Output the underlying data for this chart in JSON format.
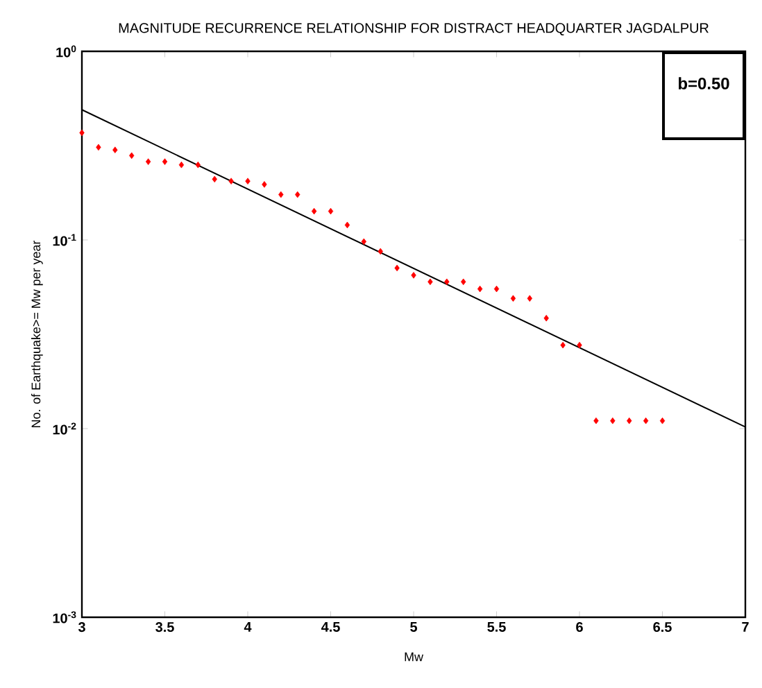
{
  "chart_data": {
    "type": "scatter",
    "title": "MAGNITUDE RECURRENCE RELATIONSHIP FOR DISTRACT HEADQUARTER JAGDALPUR",
    "xlabel": "Mw",
    "ylabel": "No. of Earthquake>= Mw per year",
    "annotations": [
      "b=0.50"
    ],
    "x": [
      3.0,
      3.1,
      3.2,
      3.3,
      3.4,
      3.5,
      3.6,
      3.7,
      3.8,
      3.9,
      4.0,
      4.1,
      4.2,
      4.3,
      4.4,
      4.5,
      4.6,
      4.7,
      4.8,
      4.9,
      5.0,
      5.1,
      5.2,
      5.3,
      5.4,
      5.5,
      5.6,
      5.7,
      5.8,
      5.9,
      6.0,
      6.1,
      6.2,
      6.3,
      6.4,
      6.5
    ],
    "series": [
      {
        "color": "#ff0000",
        "marker": "diamond",
        "values": [
          0.37,
          0.31,
          0.3,
          0.28,
          0.26,
          0.26,
          0.25,
          0.25,
          0.21,
          0.205,
          0.205,
          0.197,
          0.174,
          0.174,
          0.142,
          0.142,
          0.12,
          0.098,
          0.087,
          0.071,
          0.065,
          0.06,
          0.06,
          0.06,
          0.055,
          0.055,
          0.049,
          0.049,
          0.0385,
          0.0277,
          0.0277,
          0.011,
          0.011,
          0.011,
          0.011,
          0.011
        ]
      },
      {
        "type": "line",
        "color": "#000000",
        "marker": "none",
        "line_style": "solid",
        "x": [
          3,
          7
        ],
        "values": [
          0.49,
          0.0102
        ]
      }
    ],
    "log": "y",
    "grid": false,
    "xlim": [
      3,
      7
    ],
    "xticks": [
      3,
      3.5,
      4,
      4.5,
      5,
      5.5,
      6,
      6.5,
      7
    ],
    "ylim": [
      0.001,
      1
    ],
    "yticks": [
      {
        "value": 0.001,
        "label": "10$^{-3}$"
      },
      {
        "value": 0.01,
        "label": "10$^{-2}$"
      },
      {
        "value": 0.1,
        "label": "10$^{-1}$"
      },
      {
        "value": 1,
        "label": "10$^{0}$"
      }
    ]
  }
}
